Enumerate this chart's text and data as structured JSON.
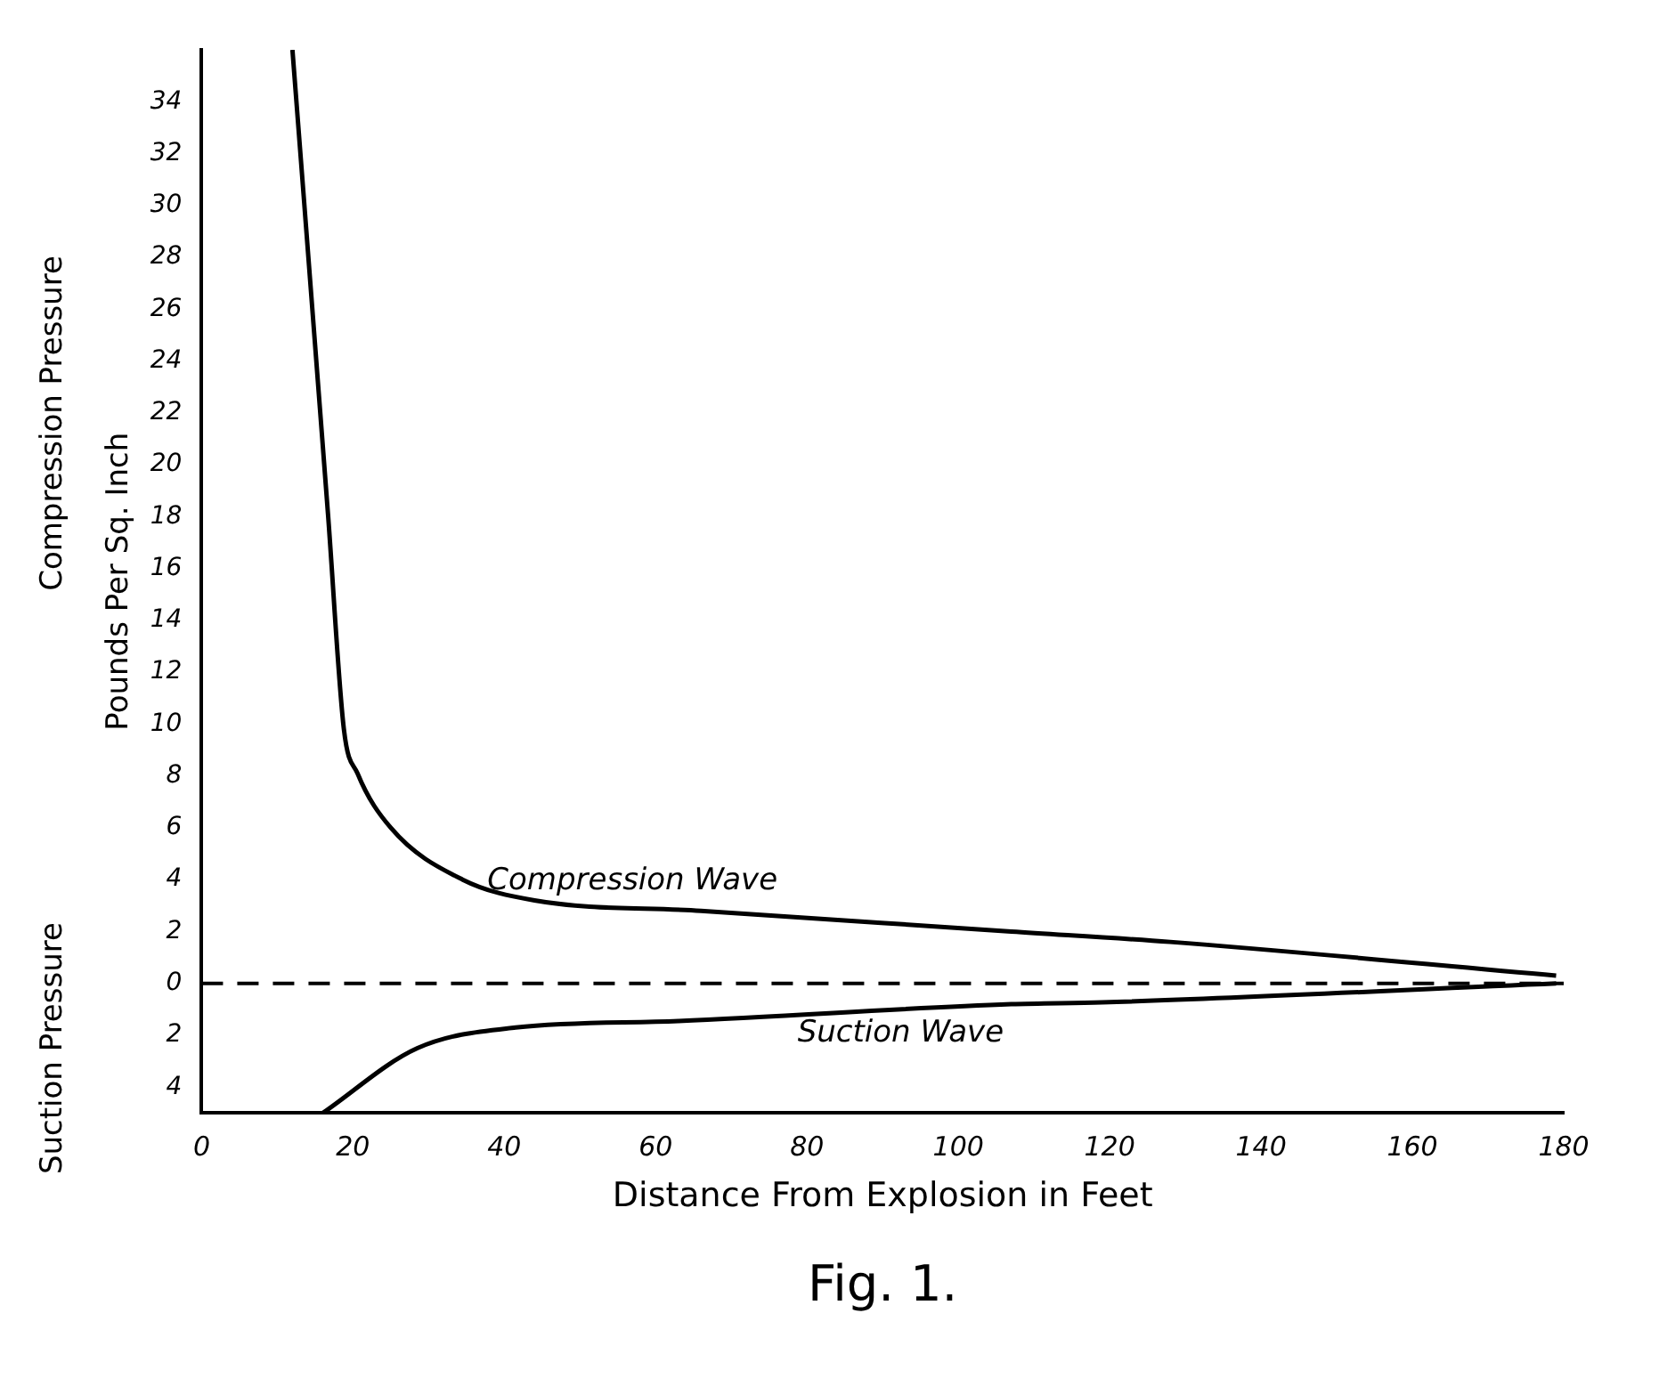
{
  "chart_data": {
    "type": "line",
    "xlabel": "Distance From Explosion in Feet",
    "ylabel": "Pounds Per Sq. Inch",
    "annotations": [
      "Compression Pressure",
      "Suction Pressure",
      "Fig. 1."
    ],
    "series": [
      {
        "name": "Compression Wave",
        "color": "#000000",
        "x": [
          12,
          16.7,
          18.8,
          20.6,
          25,
          34.5,
          44,
          66,
          107,
          128,
          179
        ],
        "values": [
          36,
          18.1,
          9.8,
          8.1,
          6,
          4,
          3.2,
          2.8,
          2,
          1.6,
          0.3
        ]
      },
      {
        "name": "Suction Wave",
        "color": "#000000",
        "x": [
          16,
          28.5,
          41.5,
          63,
          107,
          119,
          179
        ],
        "values": [
          -5,
          -2.5,
          -1.7,
          -1.45,
          -0.8,
          -0.73,
          0
        ]
      }
    ],
    "ref_lines": [
      {
        "axis": "y",
        "value": 0,
        "color": "#000000",
        "line_style": "dashed"
      }
    ],
    "xlim": [
      0,
      180
    ],
    "xticks": [
      0,
      20,
      40,
      60,
      80,
      100,
      120,
      140,
      160,
      180
    ],
    "ylim": [
      -5,
      36
    ],
    "yticks": [
      {
        "value": -4,
        "label": "4"
      },
      {
        "value": -2,
        "label": "2"
      },
      0,
      2,
      4,
      6,
      8,
      10,
      12,
      14,
      16,
      18,
      20,
      22,
      24,
      26,
      28,
      30,
      32,
      34
    ],
    "grid": false,
    "legend": false,
    "marker": "none",
    "line_style": "solid"
  }
}
